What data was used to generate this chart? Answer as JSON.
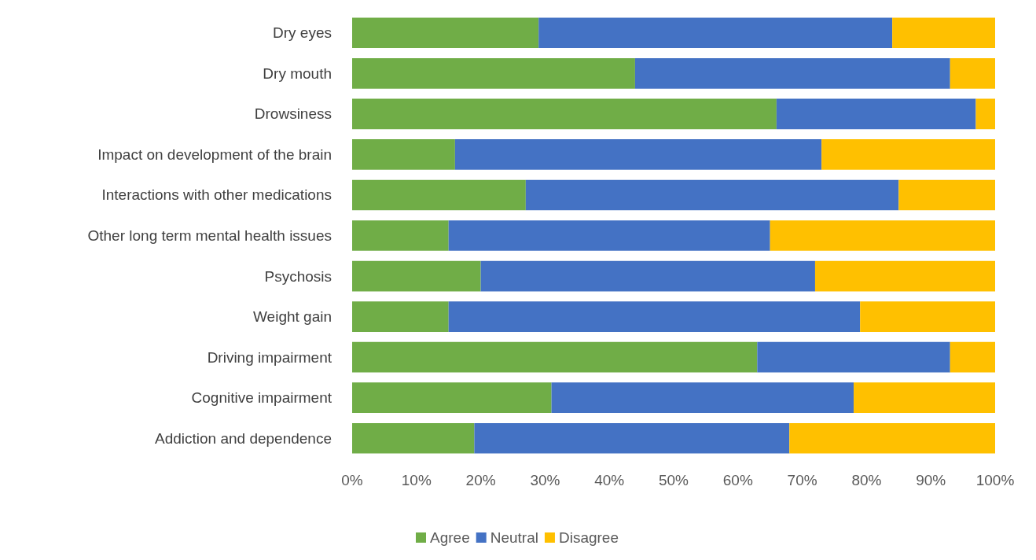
{
  "chart_data": {
    "type": "bar",
    "orientation": "horizontal",
    "stacked": true,
    "categories": [
      "Dry eyes",
      "Dry mouth",
      "Drowsiness",
      "Impact on development of the brain",
      "Interactions with other medications",
      "Other long term mental health issues",
      "Psychosis",
      "Weight gain",
      "Driving impairment",
      "Cognitive impairment",
      "Addiction and dependence"
    ],
    "series": [
      {
        "name": "Agree",
        "color": "#70ad47",
        "values": [
          29,
          44,
          66,
          16,
          27,
          15,
          20,
          15,
          63,
          31,
          19
        ]
      },
      {
        "name": "Neutral",
        "color": "#4472c4",
        "values": [
          55,
          49,
          31,
          57,
          58,
          50,
          52,
          64,
          30,
          47,
          49
        ]
      },
      {
        "name": "Disagree",
        "color": "#ffc000",
        "values": [
          16,
          7,
          3,
          27,
          15,
          35,
          28,
          21,
          7,
          22,
          32
        ]
      }
    ],
    "xlim": [
      0,
      100
    ],
    "xticks": [
      {
        "value": 0,
        "label": "0%"
      },
      {
        "value": 10,
        "label": "10%"
      },
      {
        "value": 20,
        "label": "20%"
      },
      {
        "value": 30,
        "label": "30%"
      },
      {
        "value": 40,
        "label": "40%"
      },
      {
        "value": 50,
        "label": "50%"
      },
      {
        "value": 60,
        "label": "60%"
      },
      {
        "value": 70,
        "label": "70%"
      },
      {
        "value": 80,
        "label": "80%"
      },
      {
        "value": 90,
        "label": "90%"
      },
      {
        "value": 100,
        "label": "100%"
      }
    ],
    "grid": false,
    "legend": "bottom"
  }
}
